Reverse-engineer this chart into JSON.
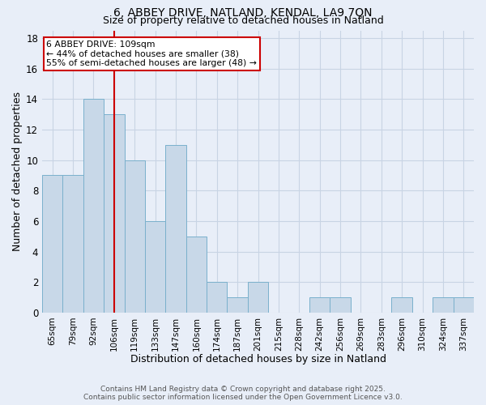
{
  "title1": "6, ABBEY DRIVE, NATLAND, KENDAL, LA9 7QN",
  "title2": "Size of property relative to detached houses in Natland",
  "xlabel": "Distribution of detached houses by size in Natland",
  "ylabel": "Number of detached properties",
  "bar_labels": [
    "65sqm",
    "79sqm",
    "92sqm",
    "106sqm",
    "119sqm",
    "133sqm",
    "147sqm",
    "160sqm",
    "174sqm",
    "187sqm",
    "201sqm",
    "215sqm",
    "228sqm",
    "242sqm",
    "256sqm",
    "269sqm",
    "283sqm",
    "296sqm",
    "310sqm",
    "324sqm",
    "337sqm"
  ],
  "bar_values": [
    9,
    9,
    14,
    13,
    10,
    6,
    11,
    5,
    2,
    1,
    2,
    0,
    0,
    1,
    1,
    0,
    0,
    1,
    0,
    1,
    1
  ],
  "bar_color": "#c8d8e8",
  "bar_edgecolor": "#7ab0cc",
  "highlight_index": 3,
  "highlight_line_color": "#cc0000",
  "annotation_text": "6 ABBEY DRIVE: 109sqm\n← 44% of detached houses are smaller (38)\n55% of semi-detached houses are larger (48) →",
  "annotation_box_edgecolor": "#cc0000",
  "annotation_box_facecolor": "#ffffff",
  "ylim": [
    0,
    18.5
  ],
  "yticks": [
    0,
    2,
    4,
    6,
    8,
    10,
    12,
    14,
    16,
    18
  ],
  "grid_color": "#c8d4e4",
  "background_color": "#e8eef8",
  "footer": "Contains HM Land Registry data © Crown copyright and database right 2025.\nContains public sector information licensed under the Open Government Licence v3.0."
}
